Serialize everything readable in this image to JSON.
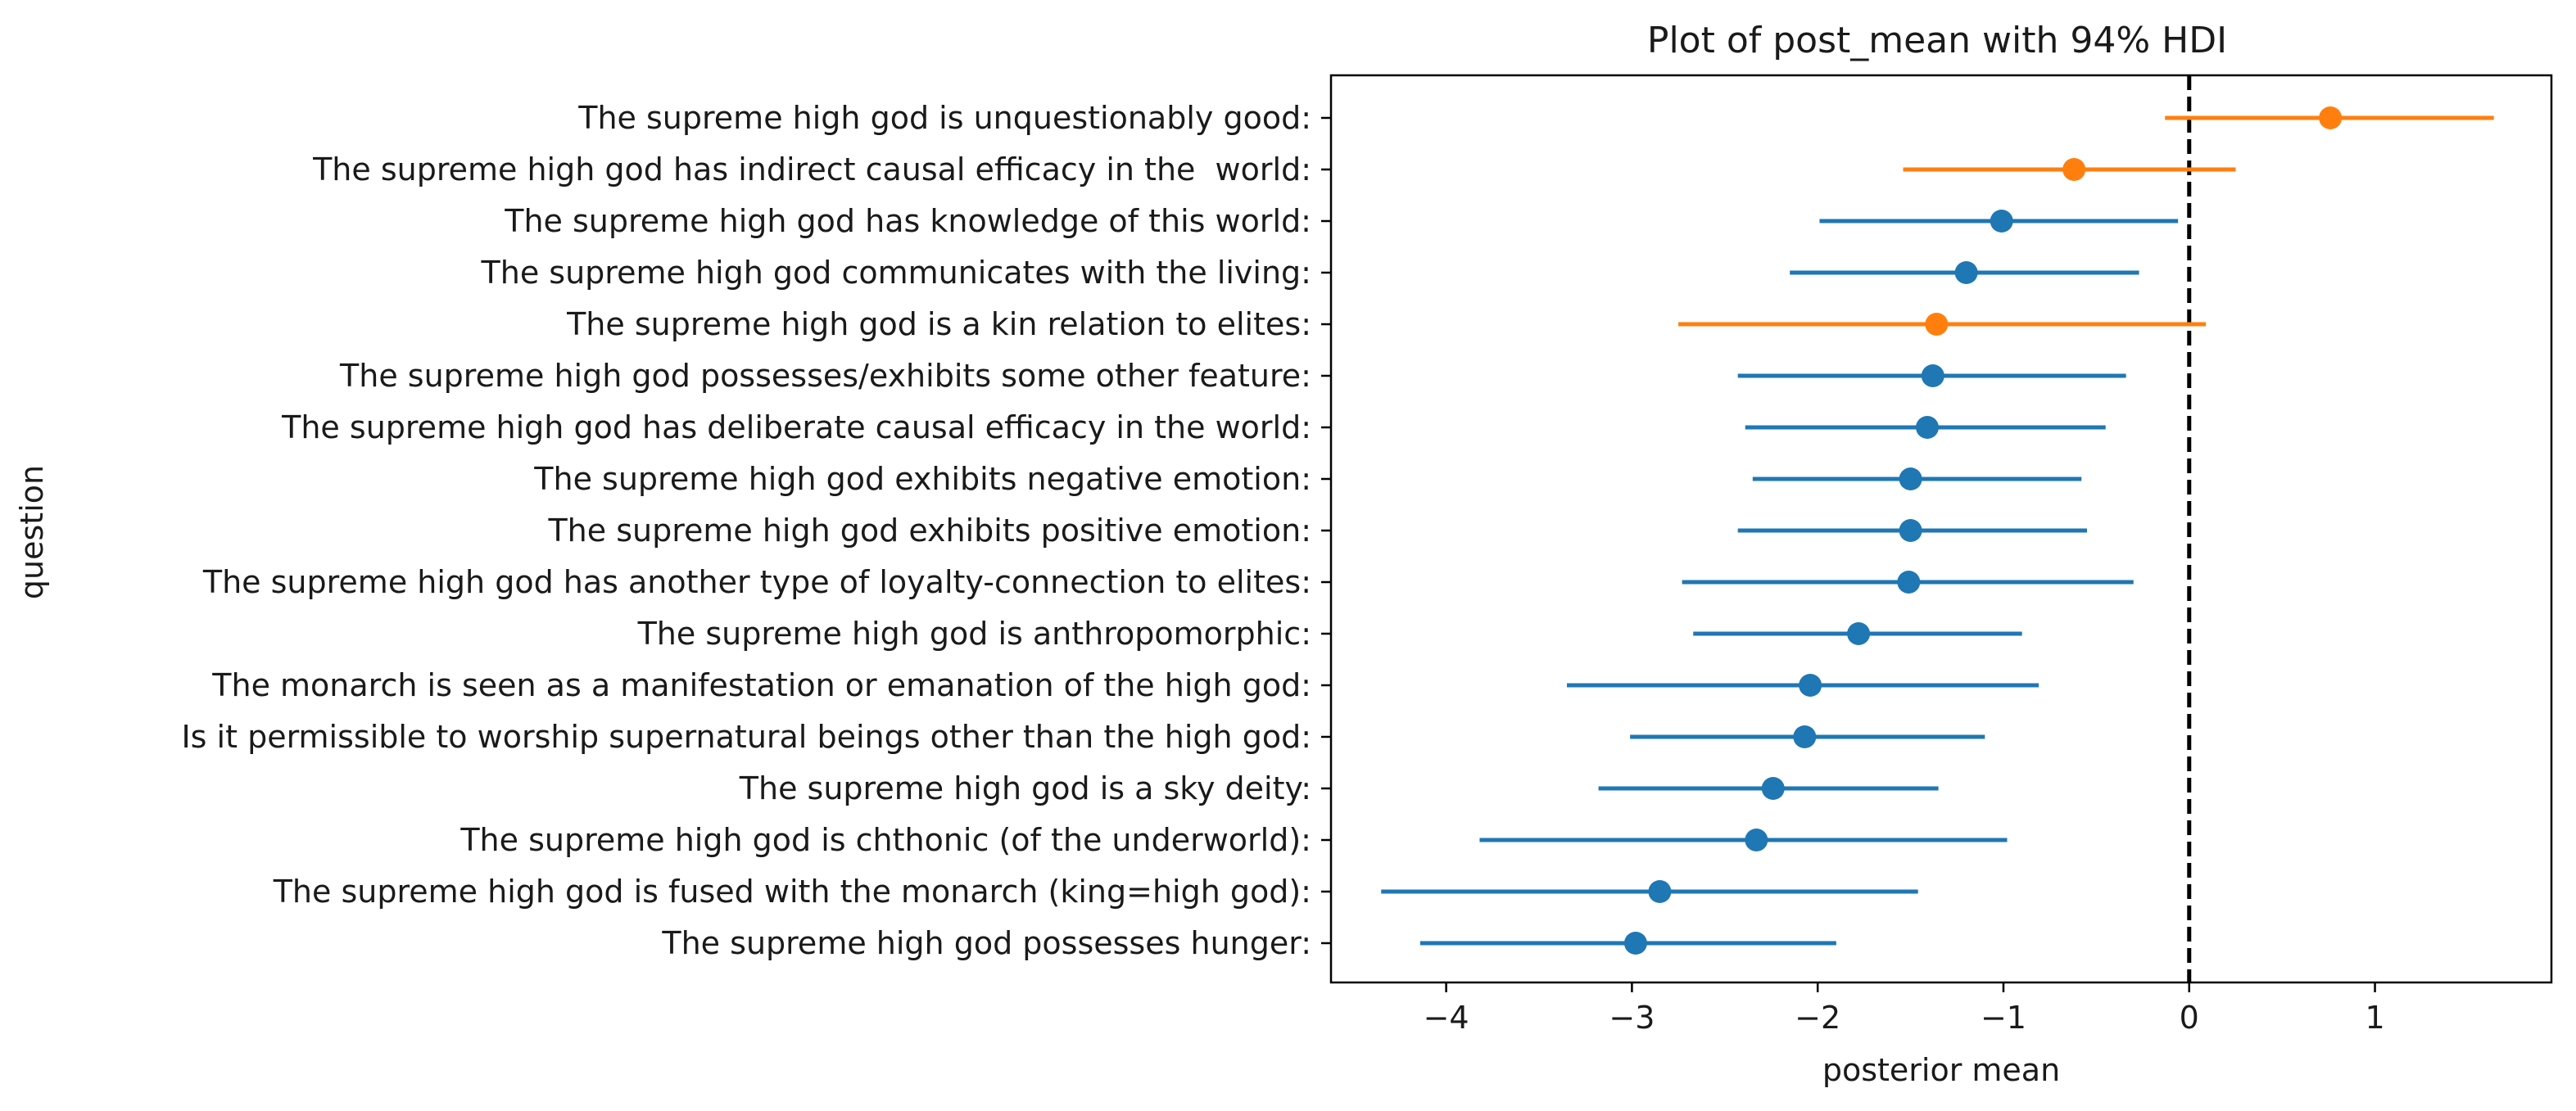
{
  "chart_data": {
    "type": "scatter",
    "title": "Plot of post_mean with 94% HDI",
    "xlabel": "posterior mean",
    "ylabel": "question",
    "xlim": [
      -4.62,
      1.95
    ],
    "xticks": [
      -4,
      -3,
      -2,
      -1,
      0,
      1
    ],
    "xtick_labels": [
      "−4",
      "−3",
      "−2",
      "−1",
      "0",
      "1"
    ],
    "reference_line": {
      "x": 0,
      "style": "dashed",
      "color": "#000000"
    },
    "colors": {
      "hdi_excludes_zero": "#1f77b4",
      "hdi_includes_zero": "#ff7f0e"
    },
    "grid": false,
    "legend": "none",
    "points": [
      {
        "question": "The supreme high god is unquestionably good:",
        "mean": 0.76,
        "hdi_low": -0.13,
        "hdi_high": 1.64,
        "color": "#ff7f0e"
      },
      {
        "question": "The supreme high god has indirect causal efficacy in the  world:",
        "mean": -0.62,
        "hdi_low": -1.54,
        "hdi_high": 0.25,
        "color": "#ff7f0e"
      },
      {
        "question": "The supreme high god has knowledge of this world:",
        "mean": -1.01,
        "hdi_low": -1.99,
        "hdi_high": -0.06,
        "color": "#1f77b4"
      },
      {
        "question": "The supreme high god communicates with the living:",
        "mean": -1.2,
        "hdi_low": -2.15,
        "hdi_high": -0.27,
        "color": "#1f77b4"
      },
      {
        "question": "The supreme high god is a kin relation to elites:",
        "mean": -1.36,
        "hdi_low": -2.75,
        "hdi_high": 0.09,
        "color": "#ff7f0e"
      },
      {
        "question": "The supreme high god possesses/exhibits some other feature:",
        "mean": -1.38,
        "hdi_low": -2.43,
        "hdi_high": -0.34,
        "color": "#1f77b4"
      },
      {
        "question": "The supreme high god has deliberate causal efficacy in the world:",
        "mean": -1.41,
        "hdi_low": -2.39,
        "hdi_high": -0.45,
        "color": "#1f77b4"
      },
      {
        "question": "The supreme high god exhibits negative emotion:",
        "mean": -1.5,
        "hdi_low": -2.35,
        "hdi_high": -0.58,
        "color": "#1f77b4"
      },
      {
        "question": "The supreme high god exhibits positive emotion:",
        "mean": -1.5,
        "hdi_low": -2.43,
        "hdi_high": -0.55,
        "color": "#1f77b4"
      },
      {
        "question": "The supreme high god has another type of loyalty-connection to elites:",
        "mean": -1.51,
        "hdi_low": -2.73,
        "hdi_high": -0.3,
        "color": "#1f77b4"
      },
      {
        "question": "The supreme high god is anthropomorphic:",
        "mean": -1.78,
        "hdi_low": -2.67,
        "hdi_high": -0.9,
        "color": "#1f77b4"
      },
      {
        "question": "The monarch is seen as a manifestation or emanation of the high god:",
        "mean": -2.04,
        "hdi_low": -3.35,
        "hdi_high": -0.81,
        "color": "#1f77b4"
      },
      {
        "question": "Is it permissible to worship supernatural beings other than the high god:",
        "mean": -2.07,
        "hdi_low": -3.01,
        "hdi_high": -1.1,
        "color": "#1f77b4"
      },
      {
        "question": "The supreme high god is a sky deity:",
        "mean": -2.24,
        "hdi_low": -3.18,
        "hdi_high": -1.35,
        "color": "#1f77b4"
      },
      {
        "question": "The supreme high god is chthonic (of the underworld):",
        "mean": -2.33,
        "hdi_low": -3.82,
        "hdi_high": -0.98,
        "color": "#1f77b4"
      },
      {
        "question": "The supreme high god is fused with the monarch (king=high god):",
        "mean": -2.85,
        "hdi_low": -4.35,
        "hdi_high": -1.46,
        "color": "#1f77b4"
      },
      {
        "question": "The supreme high god possesses hunger:",
        "mean": -2.98,
        "hdi_low": -4.14,
        "hdi_high": -1.9,
        "color": "#1f77b4"
      }
    ]
  }
}
